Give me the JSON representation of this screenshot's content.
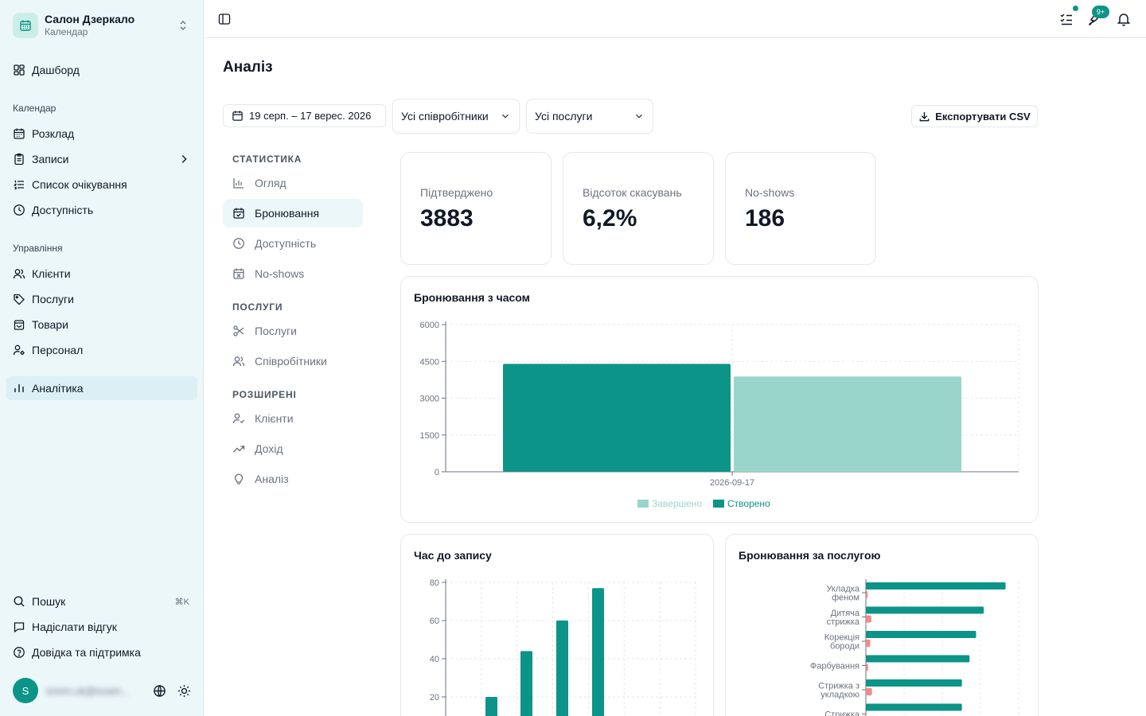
{
  "colors": {
    "accent": "#0d9488",
    "accent_light": "#99d5cb",
    "noshow": "#f08a8a",
    "sidebar_bg": "#ecf7fa"
  },
  "sidebar": {
    "brand_name": "Салон Дзеркало",
    "brand_sub": "Календар",
    "dashboard": "Дашборд",
    "section_calendar": "Календар",
    "schedule": "Розклад",
    "appointments": "Записи",
    "waitlist": "Список очікування",
    "availability": "Доступність",
    "section_management": "Управління",
    "clients": "Клієнти",
    "services": "Послуги",
    "products": "Товари",
    "staff": "Персонал",
    "analytics": "Аналітика",
    "search": "Пошук",
    "search_shortcut": "⌘K",
    "feedback": "Надіслати відгук",
    "help": "Довідка та підтримка",
    "avatar_initial": "S",
    "user_email": "snnm.uk@exam..."
  },
  "topbar": {
    "notifications_count": "9+"
  },
  "page": {
    "title": "Аналіз",
    "date_range": "19 серп. – 17 верес. 2026",
    "staff_filter": "Усі співробітники",
    "service_filter": "Усі послуги",
    "export_label": "Експортувати CSV"
  },
  "subnav": {
    "section_stats": "СТАТИСТИКА",
    "overview": "Огляд",
    "bookings": "Бронювання",
    "availability": "Доступність",
    "noshows": "No-shows",
    "section_services": "ПОСЛУГИ",
    "services": "Послуги",
    "employees": "Співробітники",
    "section_advanced": "РОЗШИРЕНІ",
    "clients": "Клієнти",
    "revenue": "Дохід",
    "analysis": "Аналіз"
  },
  "stats": {
    "confirmed_label": "Підтверджено",
    "confirmed_value": "3883",
    "cancel_label": "Відсоток скасувань",
    "cancel_value": "6,2%",
    "noshow_label": "No-shows",
    "noshow_value": "186"
  },
  "chart_data": [
    {
      "type": "bar",
      "title": "Бронювання з часом",
      "categories": [
        "2026-09-17"
      ],
      "series": [
        {
          "name": "Створено",
          "values": [
            4400
          ]
        },
        {
          "name": "Завершено",
          "values": [
            3883
          ]
        }
      ],
      "ylim": [
        0,
        6000
      ],
      "yticks": [
        0,
        1500,
        3000,
        4500,
        6000
      ],
      "legend": "bottom",
      "grid": true
    },
    {
      "type": "bar",
      "title": "Час до запису",
      "values": [
        20,
        44,
        60,
        77
      ],
      "ylim": [
        0,
        80
      ],
      "yticks": [
        20,
        40,
        60,
        80
      ],
      "grid": true
    },
    {
      "type": "bar",
      "orientation": "horizontal",
      "title": "Бронювання за послугою",
      "categories": [
        "Укладка феном",
        "Дитяча стрижка",
        "Корекція бороди",
        "Фарбування",
        "Стрижка з укладкою",
        "Стрижка"
      ],
      "category_lines": [
        [
          "Укладка",
          "феном"
        ],
        [
          "Дитяча",
          "стрижка"
        ],
        [
          "Корекція",
          "бороди"
        ],
        [
          "Фарбування"
        ],
        [
          "Стрижка з",
          "укладкою"
        ],
        [
          "Стрижка"
        ]
      ],
      "series": [
        {
          "values": [
            640,
            540,
            505,
            475,
            440,
            440
          ]
        },
        {
          "values": [
            8,
            25,
            20,
            10,
            28,
            0
          ]
        }
      ],
      "grid": true
    }
  ]
}
